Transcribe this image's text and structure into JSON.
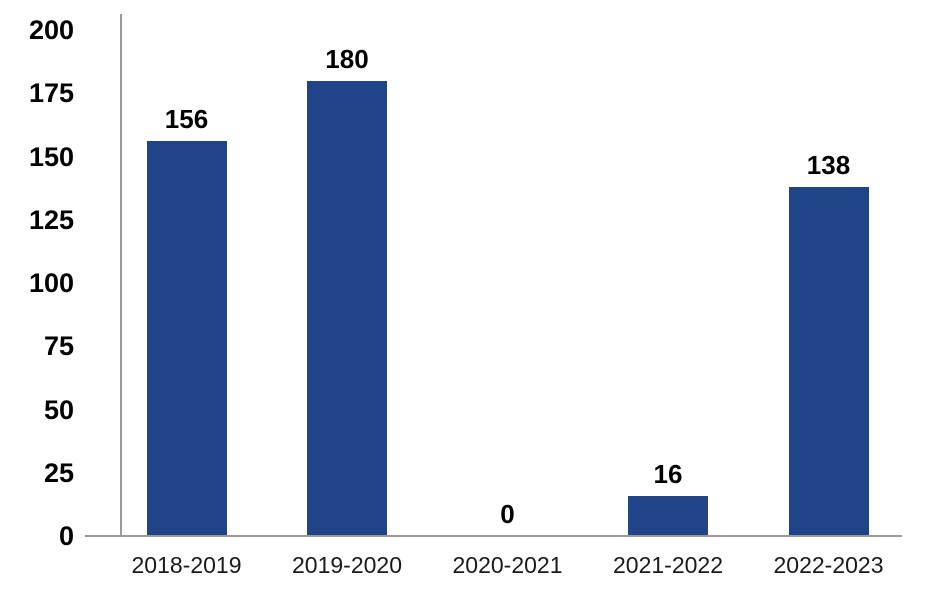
{
  "chart_data": {
    "type": "bar",
    "title": "",
    "xlabel": "",
    "ylabel": "",
    "categories": [
      "2018-2019",
      "2019-2020",
      "2020-2021",
      "2021-2022",
      "2022-2023"
    ],
    "values": [
      156,
      180,
      0,
      16,
      138
    ],
    "bar_labels": [
      "156",
      "180",
      "0",
      "16",
      "138"
    ],
    "ylim": [
      0,
      200
    ],
    "yticks": [
      0,
      25,
      50,
      75,
      100,
      125,
      150,
      175,
      200
    ],
    "grid": false,
    "legend": "none",
    "data_labels_shown": true,
    "colors": {
      "bar": "#1F4588",
      "axis_line": "#9A9A9A",
      "tick_label": "#000000",
      "value_label": "#000000",
      "category_label": "#1A1A1A"
    }
  }
}
